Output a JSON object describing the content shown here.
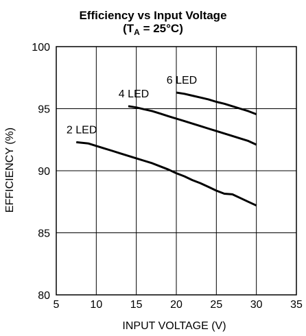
{
  "chart_data": {
    "type": "line",
    "title": "Efficiency vs Input Voltage",
    "subtitle": {
      "prefix": "(T",
      "subscript": "A",
      "suffix": " = 25°C)"
    },
    "xlabel": "INPUT VOLTAGE (V)",
    "ylabel": "EFFICIENCY (%)",
    "xlim": [
      5,
      35
    ],
    "ylim": [
      80,
      100
    ],
    "xticks": [
      5,
      10,
      15,
      20,
      25,
      30,
      35
    ],
    "yticks": [
      80,
      85,
      90,
      95,
      100
    ],
    "grid": true,
    "colors": {
      "line": "#000000",
      "grid": "#000000",
      "background": "#ffffff"
    },
    "series": [
      {
        "name": "2 LED",
        "x": [
          7.5,
          9,
          10,
          11,
          12,
          13,
          14,
          15,
          16,
          17,
          18,
          19,
          20,
          21,
          22,
          23,
          24,
          25,
          26,
          27,
          28,
          29,
          30
        ],
        "y": [
          92.3,
          92.2,
          92.0,
          91.8,
          91.6,
          91.4,
          91.2,
          91.0,
          90.8,
          90.6,
          90.35,
          90.1,
          89.8,
          89.55,
          89.25,
          89.0,
          88.7,
          88.4,
          88.15,
          88.1,
          87.8,
          87.5,
          87.2
        ]
      },
      {
        "name": "4 LED",
        "x": [
          14,
          15,
          16,
          17,
          18,
          19,
          20,
          21,
          22,
          23,
          24,
          25,
          26,
          27,
          28,
          29,
          30
        ],
        "y": [
          95.2,
          95.1,
          94.95,
          94.8,
          94.6,
          94.4,
          94.2,
          94.0,
          93.8,
          93.6,
          93.4,
          93.2,
          93.0,
          92.8,
          92.6,
          92.4,
          92.1
        ]
      },
      {
        "name": "6 LED",
        "x": [
          20,
          21,
          22,
          23,
          24,
          25,
          26,
          27,
          28,
          29,
          30
        ],
        "y": [
          96.3,
          96.2,
          96.05,
          95.9,
          95.75,
          95.55,
          95.4,
          95.2,
          95.0,
          94.8,
          94.55
        ]
      }
    ]
  }
}
